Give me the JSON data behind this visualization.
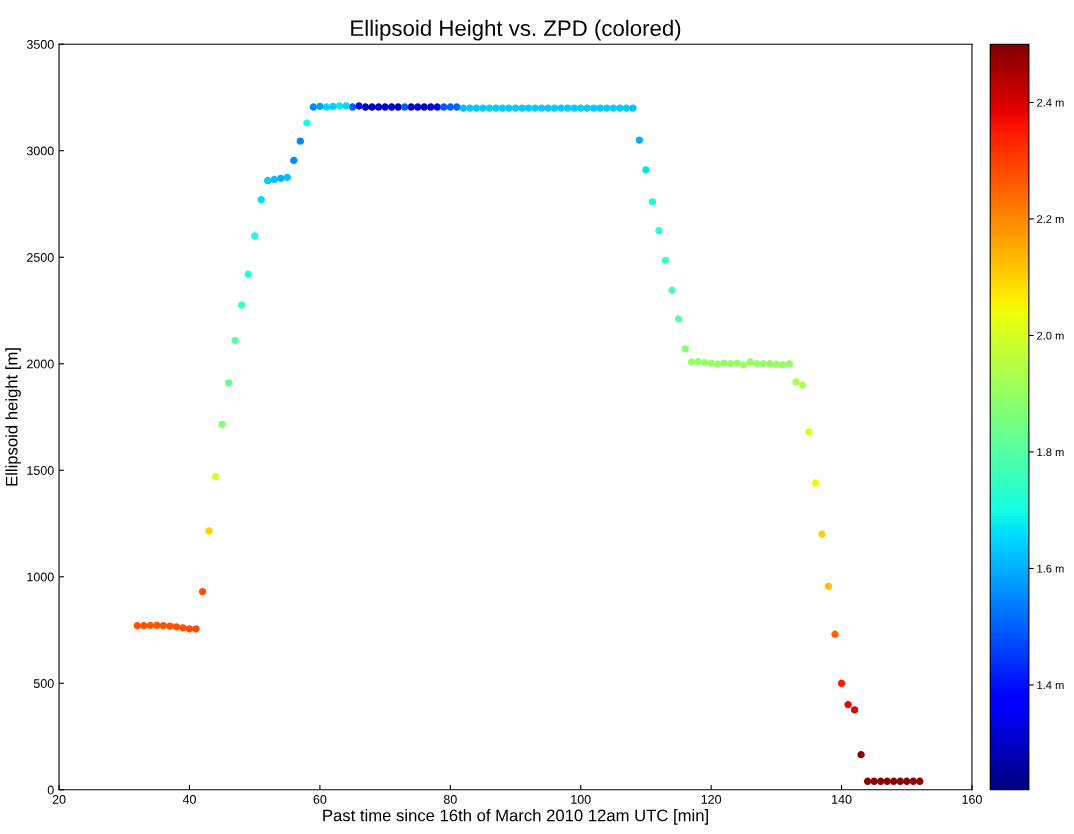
{
  "chart_data": {
    "type": "scatter",
    "title": "Ellipsoid Height vs. ZPD (colored)",
    "xlabel": "Past time since 16th of March 2010 12am UTC [min]",
    "ylabel": "Ellipsoid height [m]",
    "x": [
      32,
      33,
      34,
      35,
      36,
      37,
      38,
      39,
      40,
      41,
      42,
      43,
      44,
      45,
      46,
      47,
      48,
      49,
      50,
      51,
      52,
      53,
      54,
      55,
      56,
      57,
      58,
      59,
      60,
      61,
      62,
      63,
      64,
      65,
      66,
      67,
      68,
      69,
      70,
      71,
      72,
      73,
      74,
      75,
      76,
      77,
      78,
      79,
      80,
      81,
      82,
      83,
      84,
      85,
      86,
      87,
      88,
      89,
      90,
      91,
      92,
      93,
      94,
      95,
      96,
      97,
      98,
      99,
      100,
      101,
      102,
      103,
      104,
      105,
      106,
      107,
      108,
      109,
      110,
      111,
      112,
      113,
      114,
      115,
      116,
      117,
      118,
      119,
      120,
      121,
      122,
      123,
      124,
      125,
      126,
      127,
      128,
      129,
      130,
      131,
      132,
      133,
      134,
      135,
      136,
      137,
      138,
      139,
      140,
      141,
      142,
      143,
      144,
      145,
      146,
      147,
      148,
      149,
      150,
      151,
      152
    ],
    "values": [
      770,
      770,
      772,
      772,
      770,
      768,
      765,
      760,
      755,
      755,
      930,
      1215,
      1470,
      1715,
      1910,
      2110,
      2275,
      2420,
      2600,
      2770,
      2860,
      2865,
      2870,
      2875,
      2955,
      3045,
      3130,
      3205,
      3208,
      3205,
      3208,
      3210,
      3210,
      3205,
      3210,
      3205,
      3205,
      3205,
      3205,
      3205,
      3205,
      3205,
      3205,
      3205,
      3205,
      3205,
      3205,
      3205,
      3205,
      3205,
      3200,
      3200,
      3200,
      3200,
      3200,
      3200,
      3200,
      3200,
      3200,
      3200,
      3200,
      3200,
      3200,
      3200,
      3200,
      3200,
      3200,
      3200,
      3200,
      3200,
      3200,
      3200,
      3200,
      3200,
      3200,
      3200,
      3200,
      3050,
      2910,
      2760,
      2625,
      2485,
      2345,
      2210,
      2070,
      2008,
      2010,
      2005,
      2003,
      1998,
      2003,
      2000,
      2003,
      1995,
      2008,
      2000,
      2000,
      2000,
      1998,
      1995,
      2000,
      1915,
      1900,
      1680,
      1440,
      1200,
      955,
      730,
      500,
      400,
      375,
      165,
      40,
      40,
      40,
      40,
      40,
      40,
      40,
      40,
      40
    ],
    "cvalues": [
      2.27,
      2.27,
      2.27,
      2.27,
      2.27,
      2.27,
      2.27,
      2.27,
      2.28,
      2.28,
      2.28,
      2.1,
      2.0,
      1.87,
      1.82,
      1.8,
      1.76,
      1.72,
      1.71,
      1.66,
      1.64,
      1.62,
      1.6,
      1.62,
      1.55,
      1.55,
      1.7,
      1.55,
      1.58,
      1.65,
      1.65,
      1.68,
      1.65,
      1.5,
      1.4,
      1.28,
      1.3,
      1.3,
      1.3,
      1.3,
      1.3,
      1.5,
      1.3,
      1.3,
      1.3,
      1.3,
      1.35,
      1.5,
      1.5,
      1.5,
      1.62,
      1.64,
      1.64,
      1.64,
      1.64,
      1.64,
      1.64,
      1.64,
      1.64,
      1.64,
      1.64,
      1.64,
      1.64,
      1.64,
      1.64,
      1.64,
      1.64,
      1.64,
      1.64,
      1.64,
      1.64,
      1.64,
      1.64,
      1.64,
      1.64,
      1.64,
      1.62,
      1.6,
      1.67,
      1.7,
      1.74,
      1.76,
      1.78,
      1.8,
      1.87,
      1.9,
      1.9,
      1.9,
      1.9,
      1.9,
      1.9,
      1.9,
      1.9,
      1.9,
      1.9,
      1.9,
      1.9,
      1.9,
      1.9,
      1.9,
      1.9,
      1.93,
      1.93,
      2.0,
      2.03,
      2.1,
      2.13,
      2.25,
      2.35,
      2.38,
      2.4,
      2.48,
      2.48,
      2.48,
      2.48,
      2.48,
      2.48,
      2.48,
      2.48,
      2.48,
      2.48
    ],
    "marker": "circle",
    "xlim": [
      20,
      160
    ],
    "xticks": [
      20,
      40,
      60,
      80,
      100,
      120,
      140,
      160
    ],
    "ylim": [
      0,
      3500
    ],
    "yticks": [
      0,
      500,
      1000,
      1500,
      2000,
      2500,
      3000,
      3500
    ],
    "grid": false,
    "legend": false,
    "clim": [
      1.22,
      2.5
    ],
    "cticks": [
      {
        "value": 1.4,
        "label": "1.4 m"
      },
      {
        "value": 1.6,
        "label": "1.6 m"
      },
      {
        "value": 1.8,
        "label": "1.8 m"
      },
      {
        "value": 2.0,
        "label": "2.0 m"
      },
      {
        "value": 2.2,
        "label": "2.2 m"
      },
      {
        "value": 2.4,
        "label": "2.4 m"
      }
    ]
  }
}
